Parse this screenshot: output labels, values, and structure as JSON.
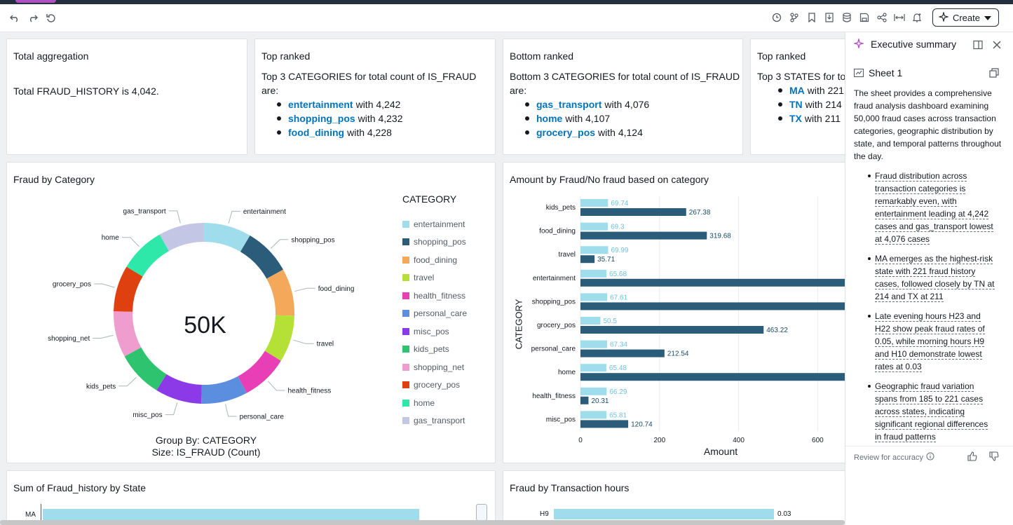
{
  "toolbar": {
    "create_label": "Create"
  },
  "kpis": {
    "total": {
      "title": "Total aggregation",
      "text": "Total FRAUD_HISTORY is 4,042."
    },
    "top": {
      "title": "Top ranked",
      "intro": "Top 3 CATEGORIES for total count of IS_FRAUD are:",
      "items": [
        {
          "name": "entertainment",
          "value": "with 4,242"
        },
        {
          "name": "shopping_pos",
          "value": "with 4,232"
        },
        {
          "name": "food_dining",
          "value": "with 4,228"
        }
      ]
    },
    "bottom": {
      "title": "Bottom ranked",
      "intro": "Bottom 3 CATEGORIES for total count of IS_FRAUD are:",
      "items": [
        {
          "name": "gas_transport",
          "value": "with 4,076"
        },
        {
          "name": "home",
          "value": "with 4,107"
        },
        {
          "name": "grocery_pos",
          "value": "with 4,124"
        }
      ]
    },
    "states": {
      "title": "Top ranked",
      "intro": "Top 3 STATES for to",
      "items": [
        {
          "name": "MA",
          "value": "with 221"
        },
        {
          "name": "TN",
          "value": "with 214"
        },
        {
          "name": "TX",
          "value": "with 211"
        }
      ]
    }
  },
  "donut": {
    "title": "Fraud by Category",
    "center": "50K",
    "legend_title": "CATEGORY",
    "footer1": "Group By: CATEGORY",
    "footer2": "Size: IS_FRAUD (Count)"
  },
  "bar": {
    "title": "Amount by Fraud/No fraud based on category",
    "ylabel": "CATEGORY",
    "xlabel": "Amount"
  },
  "bottom_cards": {
    "state": {
      "title": "Sum of Fraud_history by State",
      "first_label": "MA"
    },
    "hours": {
      "title": "Fraud by Transaction hours",
      "first_label": "H9",
      "first_value": "0.03"
    }
  },
  "summary": {
    "title": "Executive summary",
    "sheet": "Sheet 1",
    "intro": "The sheet provides a comprehensive fraud analysis dashboard examining 50,000 fraud cases across transaction categories, geographic distribution by state, and temporal patterns throughout the day.",
    "bullets": [
      "Fraud distribution across transaction categories is remarkably even, with entertainment leading at 4,242 cases and gas_transport lowest at 4,076 cases",
      "MA emerges as the highest-risk state with 221 fraud history cases, followed closely by TN at 214 and TX at 211",
      "Late evening hours H23 and H22 show peak fraud rates of 0.05, while morning hours H9 and H10 demonstrate lowest rates at 0.03",
      "Geographic fraud variation spans from 185 to 221 cases across states, indicating significant regional differences in fraud patterns"
    ],
    "review": "Review for accuracy"
  },
  "chart_data": [
    {
      "type": "pie",
      "title": "Fraud by Category",
      "categories": [
        "entertainment",
        "shopping_pos",
        "food_dining",
        "travel",
        "health_fitness",
        "personal_care",
        "misc_pos",
        "kids_pets",
        "shopping_net",
        "grocery_pos",
        "home",
        "gas_transport"
      ],
      "colors": [
        "#9fdcec",
        "#2b5d7a",
        "#f4a95a",
        "#b5e036",
        "#e83fb6",
        "#5c8ee0",
        "#8c3ae8",
        "#2ec46f",
        "#ee9dce",
        "#de4010",
        "#2de8a8",
        "#c4c6e6"
      ],
      "values": [
        4242,
        4232,
        4228,
        4180,
        4170,
        4160,
        4150,
        4140,
        4130,
        4124,
        4107,
        4076
      ],
      "total_label": "50K"
    },
    {
      "type": "bar",
      "title": "Amount by Fraud/No fraud based on category",
      "categories": [
        "kids_pets",
        "food_dining",
        "travel",
        "entertainment",
        "shopping_pos",
        "grocery_pos",
        "personal_care",
        "home",
        "health_fitness",
        "misc_pos"
      ],
      "series": [
        {
          "values": [
            69.74,
            69.3,
            69.99,
            65.68,
            67.61,
            50.5,
            67.34,
            65.48,
            66.29,
            65.81
          ],
          "color": "#9fdcec"
        },
        {
          "values": [
            267.38,
            319.68,
            35.71,
            700,
            700,
            463.22,
            212.54,
            700,
            20.31,
            120.74
          ],
          "labels": [
            "267.38",
            "319.68",
            "35.71",
            "",
            "",
            "463.22",
            "212.54",
            "",
            "20.31",
            "120.74"
          ],
          "color": "#2b5d7a"
        }
      ],
      "xticks": [
        0,
        200,
        400,
        600
      ],
      "xlim": [
        0,
        672
      ],
      "xlabel": "Amount",
      "ylabel": "CATEGORY"
    }
  ]
}
